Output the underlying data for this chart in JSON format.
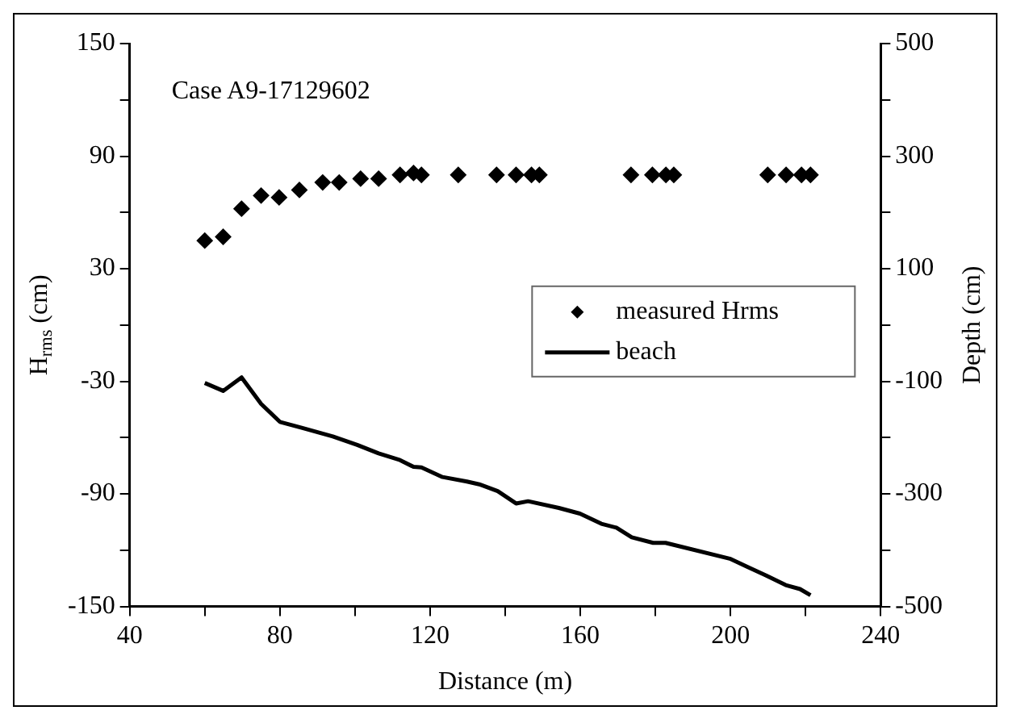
{
  "chart_data": {
    "type": "scatter",
    "xlabel": "Distance (m)",
    "ylabel": "H$_{rms}$ (cm)",
    "y2label": "Depth (cm)",
    "annotations": [
      "Case A9-17129602"
    ],
    "xlim": [
      40,
      240
    ],
    "xticks": [
      40,
      {
        "value": 60,
        "label": null
      },
      80,
      {
        "value": 100,
        "label": null
      },
      120,
      {
        "value": 140,
        "label": null
      },
      160,
      {
        "value": 180,
        "label": null
      },
      200,
      {
        "value": 220,
        "label": null
      },
      240
    ],
    "ylim": [
      -150,
      150
    ],
    "yticks": [
      -150,
      {
        "value": -120,
        "label": null
      },
      -90,
      {
        "value": -60,
        "label": null
      },
      -30,
      {
        "value": 0,
        "label": null
      },
      30,
      {
        "value": 60,
        "label": null
      },
      90,
      {
        "value": 120,
        "label": null
      },
      150
    ],
    "y2lim": [
      -500,
      500
    ],
    "y2ticks": [
      -500,
      {
        "value": -400,
        "label": null
      },
      -300,
      {
        "value": -200,
        "label": null
      },
      -100,
      {
        "value": 0,
        "label": null
      },
      100,
      {
        "value": 200,
        "label": null
      },
      300,
      {
        "value": 400,
        "label": null
      },
      500
    ],
    "grid": false,
    "legend": "right",
    "series": [
      {
        "name": "measured Hrms",
        "type": "scatter",
        "marker": "diamond",
        "color": "#000000",
        "x": [
          60,
          64.9,
          69.8,
          75,
          79.8,
          85.2,
          91.4,
          95.8,
          101.5,
          106.3,
          112,
          115.6,
          117.7,
          127.5,
          137.7,
          142.9,
          147,
          149.1,
          173.5,
          179.2,
          182.8,
          184.9,
          209.9,
          214.8,
          218.9,
          221.3
        ],
        "values": [
          45,
          47,
          62,
          69,
          68,
          72,
          76,
          76,
          78,
          78,
          80,
          81,
          80,
          80,
          80,
          80,
          80,
          80,
          80,
          80,
          80,
          80,
          80,
          80,
          80,
          80
        ]
      },
      {
        "name": "beach",
        "type": "line",
        "axis": "y2",
        "marker": "none",
        "line_style": "solid",
        "color": "#000000",
        "x": [
          60,
          64.9,
          69.8,
          75,
          80,
          86,
          94.1,
          100.6,
          106.3,
          112,
          115.6,
          117.7,
          123.3,
          129.8,
          133.1,
          138,
          142.9,
          146.1,
          154.3,
          159.9,
          165.6,
          169.6,
          173.7,
          179.4,
          182.7,
          199.8,
          204.6,
          209.5,
          214.7,
          218.5,
          221.3
        ],
        "values": [
          -103,
          -117,
          -93,
          -140,
          -172,
          -183,
          -198,
          -213,
          -228,
          -240,
          -252,
          -253,
          -270,
          -278,
          -283,
          -295,
          -317,
          -313,
          -325,
          -335,
          -353,
          -360,
          -377,
          -387,
          -387,
          -415,
          -430,
          -445,
          -462,
          -469,
          -480
        ]
      }
    ]
  }
}
